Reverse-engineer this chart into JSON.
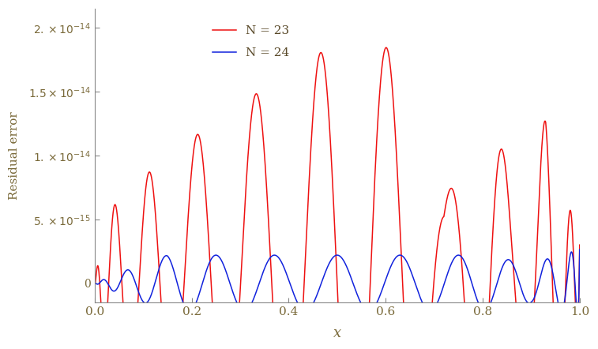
{
  "xlabel": "x",
  "ylabel": "Residual error",
  "xlim": [
    0.0,
    1.0
  ],
  "ylim": [
    -1.5e-15,
    2.15e-14
  ],
  "yticks": [
    0,
    5e-15,
    1e-14,
    1.5e-14,
    2e-14
  ],
  "xticks": [
    0.0,
    0.2,
    0.4,
    0.6,
    0.8,
    1.0
  ],
  "N23": 23,
  "N24": 24,
  "color_N23": "#ee1111",
  "color_N24": "#1122dd",
  "legend_labels": [
    "N = 23",
    "N = 24"
  ],
  "linewidth": 1.1,
  "background_color": "#ffffff",
  "n_points": 8000,
  "tick_color": "#7a6a3a",
  "label_color": "#5a4a2a"
}
